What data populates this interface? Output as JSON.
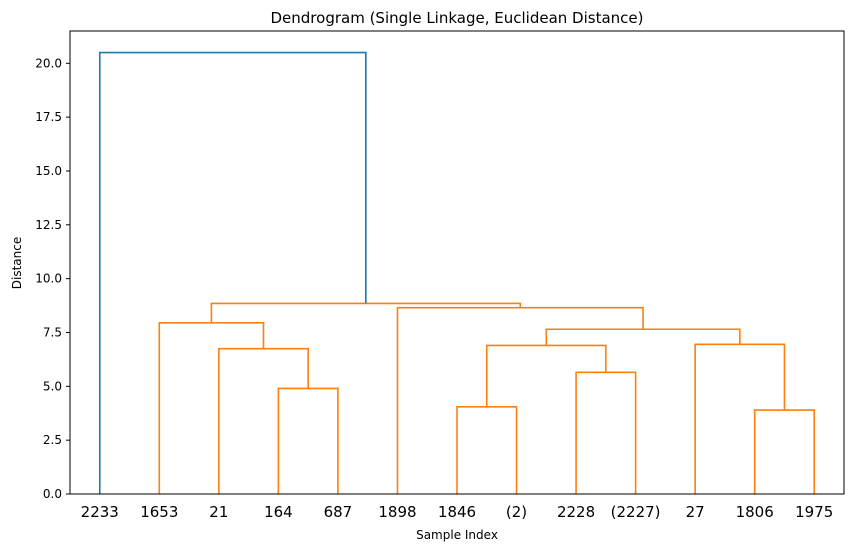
{
  "chart_data": {
    "type": "dendrogram",
    "title": "Dendrogram (Single Linkage, Euclidean Distance)",
    "xlabel": "Sample Index",
    "ylabel": "Distance",
    "ylim": [
      0,
      21.5
    ],
    "yticks": [
      0.0,
      2.5,
      5.0,
      7.5,
      10.0,
      12.5,
      15.0,
      17.5,
      20.0
    ],
    "ytick_labels": [
      "0.0",
      "2.5",
      "5.0",
      "7.5",
      "10.0",
      "12.5",
      "15.0",
      "17.5",
      "20.0"
    ],
    "leaves": [
      "2233",
      "1653",
      "21",
      "164",
      "687",
      "1898",
      "1846",
      "(2)",
      "2228",
      "(2227)",
      "27",
      "1806",
      "1975"
    ],
    "link_colors": {
      "root": "#1f77b4",
      "cluster": "#ff7f0e"
    },
    "links": [
      {
        "left_leaf": "164",
        "right_leaf": "687",
        "height": 4.9,
        "color": "cluster"
      },
      {
        "left_leaf": "21",
        "right": "164|687",
        "height": 6.75,
        "color": "cluster"
      },
      {
        "left_leaf": "1653",
        "right": "21|164|687",
        "height": 7.95,
        "color": "cluster"
      },
      {
        "left_leaf": "1846",
        "right_leaf": "(2)",
        "height": 4.05,
        "color": "cluster"
      },
      {
        "left_leaf": "2228",
        "right_leaf": "(2227)",
        "height": 5.65,
        "color": "cluster"
      },
      {
        "left": "1846|(2)",
        "right": "2228|(2227)",
        "height": 6.9,
        "color": "cluster"
      },
      {
        "left_leaf": "1806",
        "right_leaf": "1975",
        "height": 3.9,
        "color": "cluster"
      },
      {
        "left_leaf": "27",
        "right": "1806|1975",
        "height": 6.95,
        "color": "cluster"
      },
      {
        "left": "1846|(2)|2228|(2227)",
        "right": "27|1806|1975",
        "height": 7.65,
        "color": "cluster"
      },
      {
        "left_leaf": "1898",
        "right": "1846|(2)|2228|(2227)|27|1806|1975",
        "height": 8.65,
        "color": "cluster"
      },
      {
        "left": "1653|21|164|687",
        "right": "1898|1846|(2)|2228|(2227)|27|1806|1975",
        "height": 8.85,
        "color": "cluster"
      },
      {
        "left_leaf": "2233",
        "right": "1653|21|164|687|1898|1846|(2)|2228|(2227)|27|1806|1975",
        "height": 20.5,
        "color": "root"
      }
    ]
  }
}
